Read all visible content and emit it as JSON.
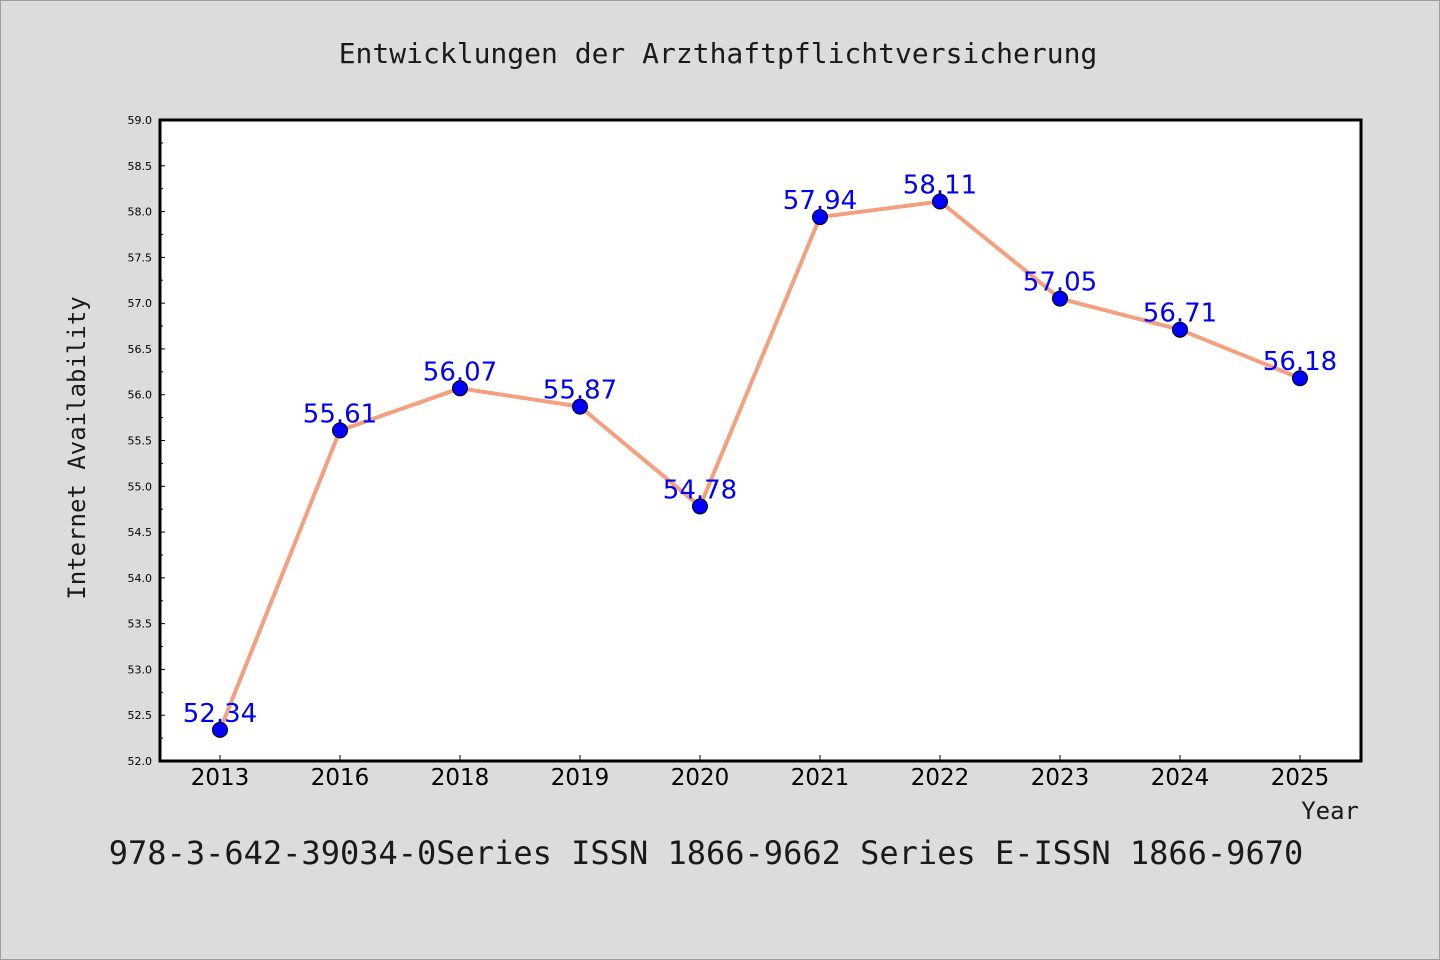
{
  "chart_data": {
    "type": "line",
    "title": "Entwicklungen der Arzthaftpflichtversicherung",
    "xlabel": "Year",
    "ylabel": "Internet Availability",
    "categories": [
      "2013",
      "2016",
      "2018",
      "2019",
      "2020",
      "2021",
      "2022",
      "2023",
      "2024",
      "2025"
    ],
    "series": [
      {
        "values": [
          52.34,
          55.61,
          56.07,
          55.87,
          54.78,
          57.94,
          58.11,
          57.05,
          56.71,
          56.18
        ],
        "labels": [
          "52.34",
          "55.61",
          "56.07",
          "55.87",
          "54.78",
          "57.94",
          "58.11",
          "57.05",
          "56.71",
          "56.18"
        ],
        "line_color": "#f4a07f",
        "marker_color": "#0000ff"
      }
    ],
    "ylim": [
      52.0,
      59.0
    ],
    "yticks": [
      "52.0",
      "52.5",
      "53.0",
      "53.5",
      "54.0",
      "54.5",
      "55.0",
      "55.5",
      "56.0",
      "56.5",
      "57.0",
      "57.5",
      "58.0",
      "58.5",
      "59.0"
    ],
    "grid": false,
    "legend": "none"
  },
  "footer": {
    "text": "978-3-642-39034-0Series ISSN 1866-9662 Series E-ISSN 1866-9670"
  },
  "colors": {
    "background": "#dcdcdc",
    "plot_area": "#ffffff",
    "line": "#f4a07f",
    "marker": "#0000ff",
    "data_label": "#0000ff"
  }
}
